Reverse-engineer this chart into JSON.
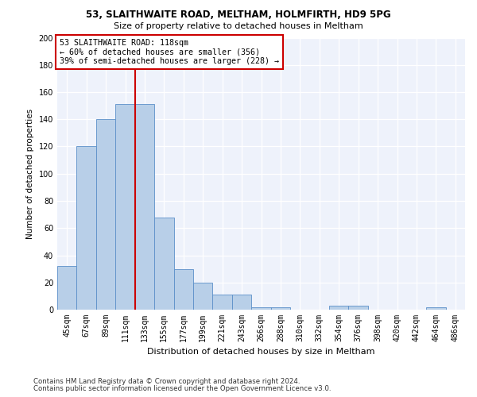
{
  "title1": "53, SLAITHWAITE ROAD, MELTHAM, HOLMFIRTH, HD9 5PG",
  "title2": "Size of property relative to detached houses in Meltham",
  "xlabel": "Distribution of detached houses by size in Meltham",
  "ylabel": "Number of detached properties",
  "bin_labels": [
    "45sqm",
    "67sqm",
    "89sqm",
    "111sqm",
    "133sqm",
    "155sqm",
    "177sqm",
    "199sqm",
    "221sqm",
    "243sqm",
    "266sqm",
    "288sqm",
    "310sqm",
    "332sqm",
    "354sqm",
    "376sqm",
    "398sqm",
    "420sqm",
    "442sqm",
    "464sqm",
    "486sqm"
  ],
  "bar_values": [
    32,
    120,
    140,
    151,
    151,
    68,
    30,
    20,
    11,
    11,
    2,
    2,
    0,
    0,
    3,
    3,
    0,
    0,
    0,
    2,
    0
  ],
  "bar_color": "#b8cfe8",
  "bar_edge_color": "#5b8fc9",
  "vline_color": "#cc0000",
  "annotation_text": "53 SLAITHWAITE ROAD: 118sqm\n← 60% of detached houses are smaller (356)\n39% of semi-detached houses are larger (228) →",
  "annotation_box_color": "#ffffff",
  "annotation_box_edge_color": "#cc0000",
  "ylim": [
    0,
    200
  ],
  "yticks": [
    0,
    20,
    40,
    60,
    80,
    100,
    120,
    140,
    160,
    180,
    200
  ],
  "footer1": "Contains HM Land Registry data © Crown copyright and database right 2024.",
  "footer2": "Contains public sector information licensed under the Open Government Licence v3.0.",
  "bg_color": "#eef2fb",
  "grid_color": "#ffffff"
}
